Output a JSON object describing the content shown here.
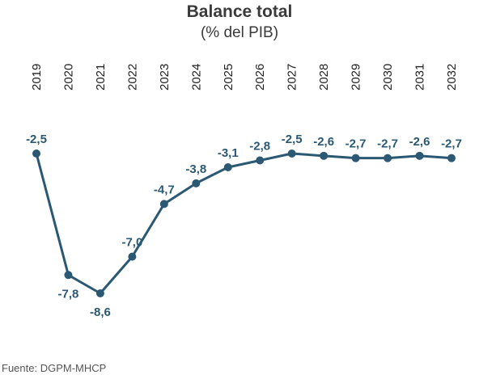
{
  "chart_data": {
    "type": "line",
    "title": "Balance total",
    "subtitle": "(% del PIB)",
    "xlabel": "",
    "ylabel": "",
    "categories": [
      "2019",
      "2020",
      "2021",
      "2022",
      "2023",
      "2024",
      "2025",
      "2026",
      "2027",
      "2028",
      "2029",
      "2030",
      "2031",
      "2032"
    ],
    "series": [
      {
        "values": [
          -2.5,
          -7.8,
          -8.6,
          -7.0,
          -4.7,
          -3.8,
          -3.1,
          -2.8,
          -2.5,
          -2.6,
          -2.7,
          -2.7,
          -2.6,
          -2.7
        ],
        "labels": [
          "-2,5",
          "-7,8",
          "-8,6",
          "-7,0",
          "-4,7",
          "-3,8",
          "-3,1",
          "-2,8",
          "-2,5",
          "-2,6",
          "-2,7",
          "-2,7",
          "-2,6",
          "-2,7"
        ]
      }
    ],
    "ylim": [
      -8.6,
      -2.5
    ],
    "x_axis_position": "top",
    "grid": false,
    "color": "#2b5873"
  },
  "source": "Fuente: DGPM-MHCP"
}
